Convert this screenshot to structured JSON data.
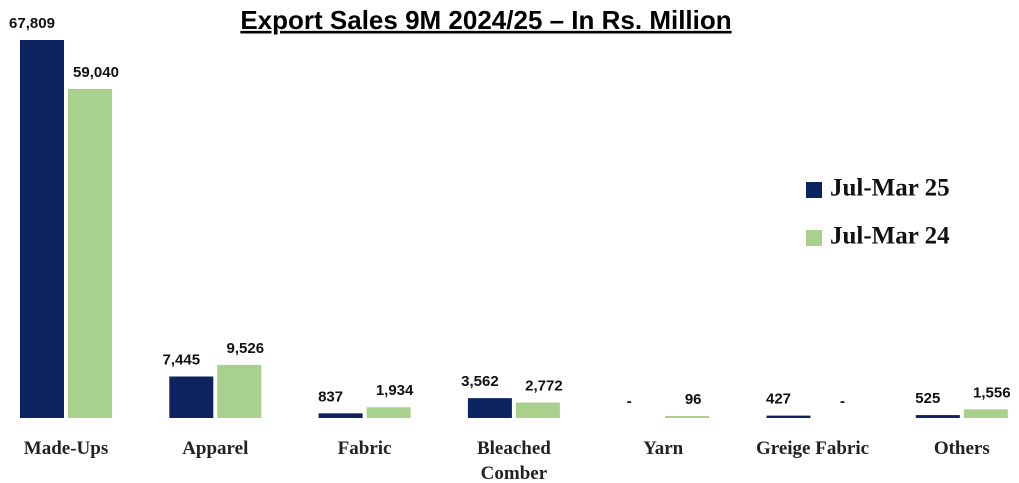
{
  "chart_data": {
    "type": "bar",
    "title": "Export Sales 9M 2024/25 – In Rs. Million",
    "categories": [
      "Made-Ups",
      "Apparel",
      "Fabric",
      "Bleached\nComber",
      "Yarn",
      "Greige Fabric",
      "Others"
    ],
    "series": [
      {
        "name": "Jul-Mar 25",
        "color": "#0d2260",
        "values": [
          67809,
          7445,
          837,
          3562,
          0,
          427,
          525
        ],
        "value_labels": [
          "67,809",
          "7,445",
          "837",
          "3,562",
          "-",
          "427",
          "525"
        ]
      },
      {
        "name": "Jul-Mar 24",
        "color": "#a9d18e",
        "values": [
          59040,
          9526,
          1934,
          2772,
          96,
          0,
          1556
        ],
        "value_labels": [
          "59,040",
          "9,526",
          "1,934",
          "2,772",
          "96",
          "-",
          "1,556"
        ]
      }
    ],
    "legend": "right"
  }
}
